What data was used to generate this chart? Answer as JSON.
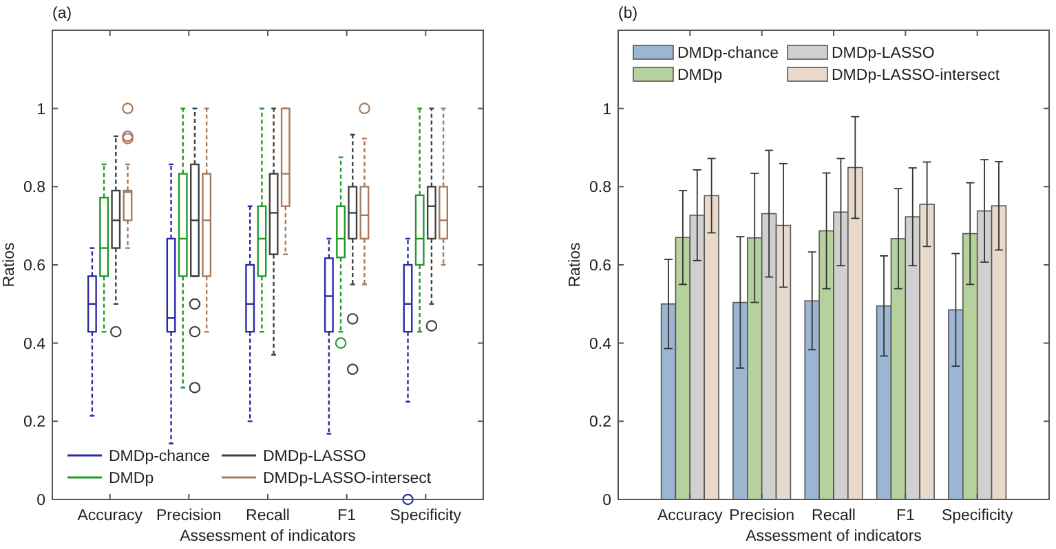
{
  "chart_data": [
    {
      "type": "box",
      "title": "(a)",
      "xlabel": "Assessment of indicators",
      "ylabel": "Ratios",
      "categories": [
        "Accuracy",
        "Precision",
        "Recall",
        "F1",
        "Specificity"
      ],
      "ylim": [
        0,
        1.2
      ],
      "yticks": [
        0,
        0.2,
        0.4,
        0.6,
        0.8,
        1
      ],
      "legend": "bottom left",
      "series": [
        {
          "name": "DMDp-chance",
          "color": "#2b2ba8",
          "boxes": [
            {
              "low": 0.214,
              "q1": 0.429,
              "median": 0.5,
              "q3": 0.571,
              "high": 0.643
            },
            {
              "low": 0.143,
              "q1": 0.429,
              "median": 0.464,
              "q3": 0.667,
              "high": 0.857
            },
            {
              "low": 0.2,
              "q1": 0.429,
              "median": 0.5,
              "q3": 0.6,
              "high": 0.75
            },
            {
              "low": 0.168,
              "q1": 0.429,
              "median": 0.52,
              "q3": 0.617,
              "high": 0.667
            },
            {
              "low": 0.25,
              "q1": 0.429,
              "median": 0.5,
              "q3": 0.6,
              "high": 0.667,
              "outliers": [
                0
              ]
            }
          ]
        },
        {
          "name": "DMDp",
          "color": "#21992a",
          "boxes": [
            {
              "low": 0.429,
              "q1": 0.571,
              "median": 0.643,
              "q3": 0.772,
              "high": 0.857
            },
            {
              "low": 0.286,
              "q1": 0.571,
              "median": 0.667,
              "q3": 0.833,
              "high": 1
            },
            {
              "low": 0.429,
              "q1": 0.571,
              "median": 0.667,
              "q3": 0.75,
              "high": 1
            },
            {
              "low": 0.429,
              "q1": 0.619,
              "median": 0.667,
              "q3": 0.75,
              "high": 0.875,
              "outliers": [
                0.4
              ]
            },
            {
              "low": 0.429,
              "q1": 0.6,
              "median": 0.667,
              "q3": 0.778,
              "high": 1
            }
          ]
        },
        {
          "name": "DMDp-LASSO",
          "color": "#404040",
          "boxes": [
            {
              "low": 0.5,
              "q1": 0.643,
              "median": 0.714,
              "q3": 0.79,
              "high": 0.929,
              "outliers": [
                0.429
              ]
            },
            {
              "low": 0.571,
              "q1": 0.571,
              "median": 0.714,
              "q3": 0.857,
              "high": 1,
              "outliers": [
                0.5,
                0.429,
                0.286
              ]
            },
            {
              "low": 0.37,
              "q1": 0.627,
              "median": 0.733,
              "q3": 0.833,
              "high": 1
            },
            {
              "low": 0.55,
              "q1": 0.667,
              "median": 0.733,
              "q3": 0.8,
              "high": 0.933,
              "outliers": [
                0.462,
                0.333
              ]
            },
            {
              "low": 0.5,
              "q1": 0.667,
              "median": 0.75,
              "q3": 0.8,
              "high": 1,
              "outliers": [
                0.444
              ]
            }
          ]
        },
        {
          "name": "DMDp-LASSO-intersect",
          "color": "#a87a5a",
          "boxes": [
            {
              "low": 0.643,
              "q1": 0.714,
              "median": 0.786,
              "q3": 0.79,
              "high": 0.857,
              "outliers": [
                1,
                0.929,
                0.923
              ]
            },
            {
              "low": 0.429,
              "q1": 0.571,
              "median": 0.714,
              "q3": 0.833,
              "high": 1
            },
            {
              "low": 0.627,
              "q1": 0.75,
              "median": 0.833,
              "q3": 1,
              "high": 1
            },
            {
              "low": 0.55,
              "q1": 0.667,
              "median": 0.727,
              "q3": 0.8,
              "high": 0.923,
              "outliers": [
                1
              ]
            },
            {
              "low": 0.6,
              "q1": 0.667,
              "median": 0.714,
              "q3": 0.8,
              "high": 1
            }
          ]
        }
      ]
    },
    {
      "type": "bar",
      "title": "(b)",
      "xlabel": "Assessment of indicators",
      "ylabel": "Ratios",
      "categories": [
        "Accuracy",
        "Precision",
        "Recall",
        "F1",
        "Specificity"
      ],
      "ylim": [
        0,
        1.2
      ],
      "yticks": [
        0,
        0.2,
        0.4,
        0.6,
        0.8,
        1
      ],
      "legend": "top left",
      "series": [
        {
          "name": "DMDp-chance",
          "color": "#9bb5d2",
          "values": [
            0.5,
            0.504,
            0.508,
            0.495,
            0.485
          ],
          "errors": [
            0.114,
            0.168,
            0.125,
            0.128,
            0.144
          ]
        },
        {
          "name": "DMDp",
          "color": "#b5d19c",
          "values": [
            0.67,
            0.669,
            0.687,
            0.667,
            0.68
          ],
          "errors": [
            0.12,
            0.165,
            0.148,
            0.128,
            0.13
          ]
        },
        {
          "name": "DMDp-LASSO",
          "color": "#d0d0d0",
          "values": [
            0.727,
            0.731,
            0.735,
            0.723,
            0.738
          ],
          "errors": [
            0.116,
            0.162,
            0.137,
            0.125,
            0.131
          ]
        },
        {
          "name": "DMDp-LASSO-intersect",
          "color": "#e9d9ca",
          "values": [
            0.777,
            0.701,
            0.849,
            0.755,
            0.751
          ],
          "errors": [
            0.095,
            0.158,
            0.13,
            0.108,
            0.113
          ]
        }
      ]
    }
  ]
}
